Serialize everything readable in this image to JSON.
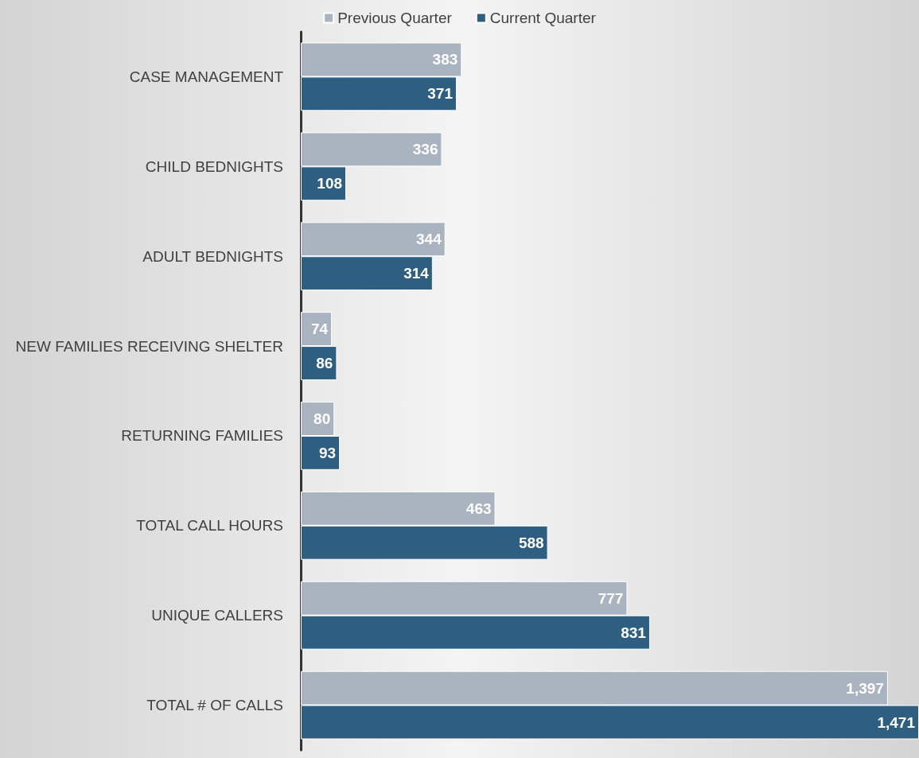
{
  "chart_data": {
    "type": "bar",
    "orientation": "horizontal",
    "categories": [
      "CASE MANAGEMENT",
      "CHILD BEDNIGHTS",
      "ADULT BEDNIGHTS",
      "NEW FAMILIES RECEIVING SHELTER",
      "RETURNING FAMILIES",
      "TOTAL CALL HOURS",
      "UNIQUE CALLERS",
      "TOTAL # OF CALLS"
    ],
    "series": [
      {
        "name": "Previous Quarter",
        "color": "#aab4c1",
        "values": [
          383,
          336,
          344,
          74,
          80,
          463,
          777,
          1397
        ],
        "value_labels": [
          "383",
          "336",
          "344",
          "74",
          "80",
          "463",
          "777",
          "1,397"
        ]
      },
      {
        "name": "Current Quarter",
        "color": "#2e5f80",
        "values": [
          371,
          108,
          314,
          86,
          93,
          588,
          831,
          1471
        ],
        "value_labels": [
          "371",
          "108",
          "314",
          "86",
          "93",
          "588",
          "831",
          "1,471"
        ]
      }
    ],
    "legend": "top"
  }
}
